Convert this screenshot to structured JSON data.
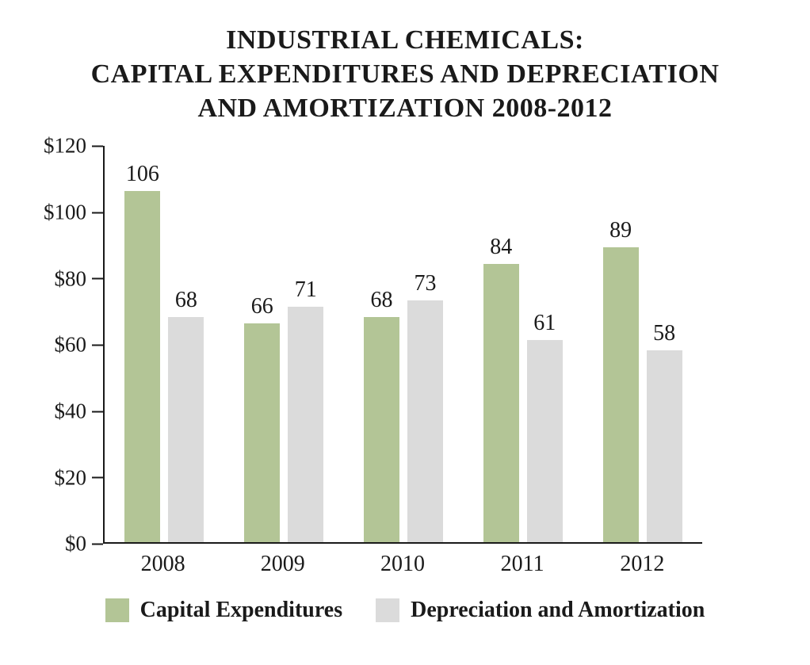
{
  "chart_data": {
    "type": "bar",
    "title": "INDUSTRIAL CHEMICALS: CAPITAL EXPENDITURES AND DEPRECIATION AND AMORTIZATION 2008-2012",
    "title_lines": [
      "INDUSTRIAL CHEMICALS:",
      "CAPITAL EXPENDITURES AND DEPRECIATION",
      "AND AMORTIZATION 2008-2012"
    ],
    "categories": [
      "2008",
      "2009",
      "2010",
      "2011",
      "2012"
    ],
    "series": [
      {
        "name": "Capital Expenditures",
        "color": "#b3c596",
        "values": [
          106,
          66,
          68,
          84,
          89
        ]
      },
      {
        "name": "Depreciation and Amortization",
        "color": "#dbdbdb",
        "values": [
          68,
          71,
          73,
          61,
          58
        ]
      }
    ],
    "ylim": [
      0,
      120
    ],
    "ytick_step": 20,
    "ytick_labels": [
      "$0",
      "$20",
      "$40",
      "$60",
      "$80",
      "$100",
      "$120"
    ],
    "grid": false,
    "legend_position": "bottom",
    "axis_color": "#1a1a1a"
  }
}
